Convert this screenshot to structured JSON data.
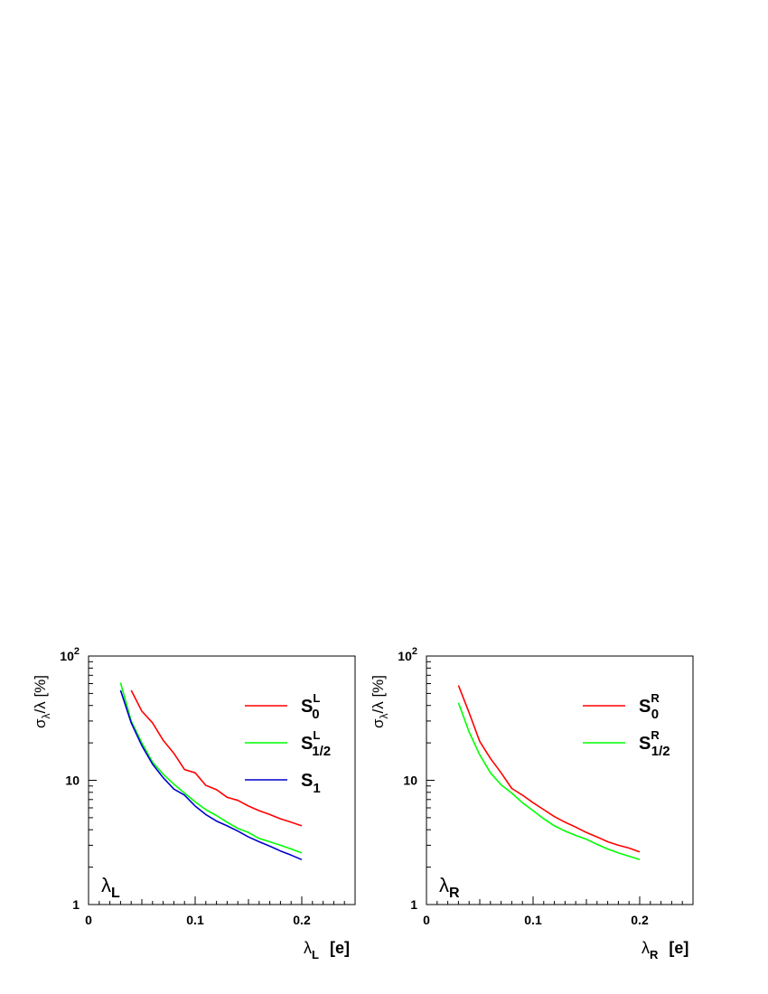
{
  "chart_data": [
    {
      "type": "line",
      "panel_label": {
        "base": "λ",
        "sub": "L"
      },
      "xlabel": {
        "base": "λ",
        "sub": "L",
        "unit": "[e]"
      },
      "ylabel": {
        "sigma": "σ",
        "sub": "λ",
        "rest": "/λ [%]"
      },
      "xlim": [
        0,
        0.25
      ],
      "ylim": [
        1,
        100
      ],
      "yscale": "log",
      "xticks": [
        {
          "v": 0,
          "label": "0"
        },
        {
          "v": 0.1,
          "label": "0.1"
        },
        {
          "v": 0.2,
          "label": "0.2"
        }
      ],
      "yticks": [
        {
          "v": 1,
          "label": "1",
          "sup": ""
        },
        {
          "v": 10,
          "label": "10",
          "sup": ""
        },
        {
          "v": 100,
          "label": "10",
          "sup": "2"
        }
      ],
      "legend_position": "top-right",
      "series": [
        {
          "name": "S",
          "sub": "0",
          "sup": "L",
          "color": "#ff0000",
          "x": [
            0.04,
            0.05,
            0.06,
            0.07,
            0.08,
            0.09,
            0.1,
            0.11,
            0.12,
            0.13,
            0.14,
            0.15,
            0.16,
            0.17,
            0.18,
            0.19,
            0.2
          ],
          "y": [
            53,
            36,
            29,
            21,
            16.5,
            12.2,
            11.5,
            9.1,
            8.4,
            7.3,
            6.9,
            6.2,
            5.7,
            5.3,
            4.9,
            4.6,
            4.3
          ]
        },
        {
          "name": "S",
          "sub": "1/2",
          "sup": "L",
          "color": "#00ff00",
          "x": [
            0.03,
            0.04,
            0.05,
            0.06,
            0.07,
            0.08,
            0.09,
            0.1,
            0.11,
            0.12,
            0.13,
            0.14,
            0.15,
            0.16,
            0.17,
            0.18,
            0.19,
            0.2
          ],
          "y": [
            61,
            30,
            20,
            14,
            11.2,
            9.3,
            7.9,
            6.7,
            5.8,
            5.2,
            4.6,
            4.1,
            3.8,
            3.4,
            3.2,
            3.0,
            2.8,
            2.6
          ]
        },
        {
          "name": "S",
          "sub": "1",
          "sup": "",
          "color": "#0000cc",
          "x": [
            0.03,
            0.04,
            0.05,
            0.06,
            0.07,
            0.08,
            0.09,
            0.1,
            0.11,
            0.12,
            0.13,
            0.14,
            0.15,
            0.16,
            0.17,
            0.18,
            0.19,
            0.2
          ],
          "y": [
            53,
            29,
            19,
            13.5,
            10.5,
            8.5,
            7.6,
            6.2,
            5.3,
            4.7,
            4.3,
            3.9,
            3.5,
            3.2,
            2.95,
            2.7,
            2.5,
            2.3
          ]
        }
      ]
    },
    {
      "type": "line",
      "panel_label": {
        "base": "λ",
        "sub": "R"
      },
      "xlabel": {
        "base": "λ",
        "sub": "R",
        "unit": "[e]"
      },
      "ylabel": {
        "sigma": "σ",
        "sub": "λ",
        "rest": "/λ [%]"
      },
      "xlim": [
        0,
        0.25
      ],
      "ylim": [
        1,
        100
      ],
      "yscale": "log",
      "xticks": [
        {
          "v": 0,
          "label": "0"
        },
        {
          "v": 0.1,
          "label": "0.1"
        },
        {
          "v": 0.2,
          "label": "0.2"
        }
      ],
      "yticks": [
        {
          "v": 1,
          "label": "1",
          "sup": ""
        },
        {
          "v": 10,
          "label": "10",
          "sup": ""
        },
        {
          "v": 100,
          "label": "10",
          "sup": "2"
        }
      ],
      "legend_position": "top-right",
      "series": [
        {
          "name": "S",
          "sub": "0",
          "sup": "R",
          "color": "#ff0000",
          "x": [
            0.03,
            0.04,
            0.05,
            0.06,
            0.07,
            0.08,
            0.09,
            0.1,
            0.11,
            0.12,
            0.13,
            0.14,
            0.15,
            0.16,
            0.17,
            0.18,
            0.19,
            0.2
          ],
          "y": [
            58,
            35,
            20.5,
            15,
            11.5,
            8.6,
            7.6,
            6.6,
            5.8,
            5.1,
            4.6,
            4.2,
            3.8,
            3.5,
            3.2,
            3.0,
            2.85,
            2.65
          ]
        },
        {
          "name": "S",
          "sub": "1/2",
          "sup": "R",
          "color": "#00ff00",
          "x": [
            0.03,
            0.04,
            0.05,
            0.06,
            0.07,
            0.08,
            0.09,
            0.1,
            0.11,
            0.12,
            0.13,
            0.14,
            0.15,
            0.16,
            0.17,
            0.18,
            0.19,
            0.2
          ],
          "y": [
            42,
            24.5,
            16,
            11.5,
            9.2,
            7.9,
            6.6,
            5.7,
            4.9,
            4.3,
            3.9,
            3.6,
            3.35,
            3.05,
            2.8,
            2.6,
            2.45,
            2.3
          ]
        }
      ]
    }
  ]
}
